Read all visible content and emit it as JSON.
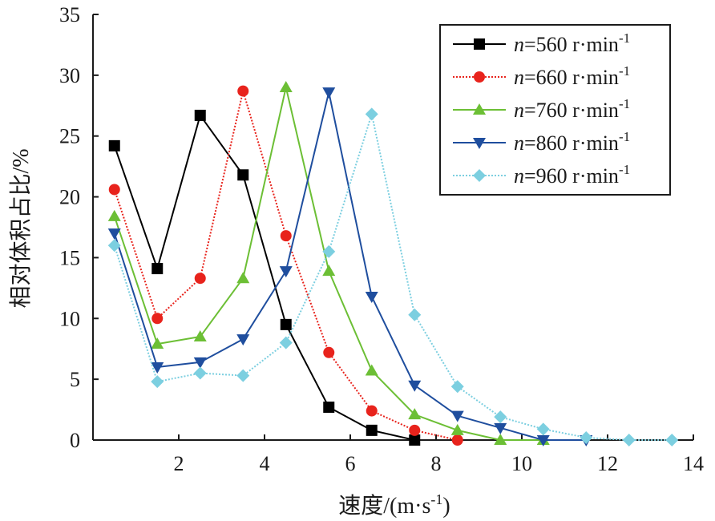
{
  "chart_data": {
    "type": "line",
    "xlabel": "速度/(m·s",
    "xlabel_sup": "-1",
    "xlabel_tail": ")",
    "ylabel": "相对体积占比/%",
    "xlim": [
      0,
      14
    ],
    "ylim": [
      0,
      35
    ],
    "xticks": [
      2,
      4,
      6,
      8,
      10,
      12,
      14
    ],
    "yticks": [
      0,
      5,
      10,
      15,
      20,
      25,
      30,
      35
    ],
    "x": [
      0.5,
      1.5,
      2.5,
      3.5,
      4.5,
      5.5,
      6.5,
      7.5,
      8.5,
      9.5,
      10.5,
      11.5,
      12.5,
      13.5
    ],
    "grid": false,
    "legend_position": "top-right",
    "series": [
      {
        "name_var": "n",
        "name_rest": "=560 r·min",
        "name_sup": "-1",
        "color": "#000000",
        "marker": "square",
        "dash": "solid",
        "values": [
          24.2,
          14.1,
          26.7,
          21.8,
          9.5,
          2.7,
          0.8,
          0.0,
          null,
          null,
          null,
          null,
          null,
          null
        ]
      },
      {
        "name_var": "n",
        "name_rest": "=660 r·min",
        "name_sup": "-1",
        "color": "#e8231c",
        "marker": "circle",
        "dash": "dotted",
        "values": [
          20.6,
          10.0,
          13.3,
          28.7,
          16.8,
          7.2,
          2.4,
          0.8,
          0.0,
          null,
          null,
          null,
          null,
          null
        ]
      },
      {
        "name_var": "n",
        "name_rest": "=760 r·min",
        "name_sup": "-1",
        "color": "#6cbf35",
        "marker": "triangle-up",
        "dash": "solid",
        "values": [
          18.4,
          7.9,
          8.5,
          13.3,
          29.0,
          13.9,
          5.7,
          2.1,
          0.8,
          0.0,
          0.0,
          null,
          null,
          null
        ]
      },
      {
        "name_var": "n",
        "name_rest": "=860 r·min",
        "name_sup": "-1",
        "color": "#1f4e9e",
        "marker": "triangle-down",
        "dash": "solid",
        "values": [
          17.0,
          6.0,
          6.4,
          8.3,
          13.9,
          28.6,
          11.8,
          4.5,
          2.0,
          1.0,
          0.0,
          0.0,
          null,
          null
        ]
      },
      {
        "name_var": "n",
        "name_rest": "=960 r·min",
        "name_sup": "-1",
        "color": "#7ccfe0",
        "marker": "diamond",
        "dash": "dotted",
        "values": [
          16.0,
          4.8,
          5.5,
          5.3,
          8.0,
          15.5,
          26.8,
          10.3,
          4.4,
          1.9,
          0.9,
          0.2,
          0.0,
          0.0
        ]
      }
    ]
  }
}
